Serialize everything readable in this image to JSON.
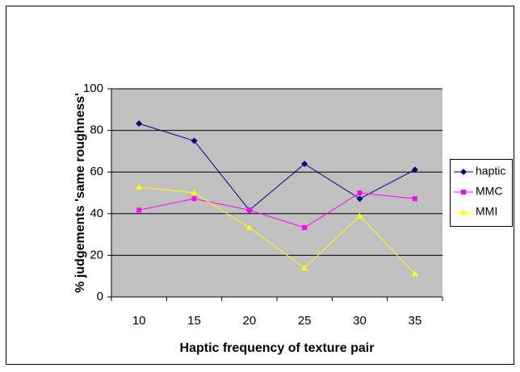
{
  "chart_data": {
    "type": "line",
    "xlabel": "Haptic frequency of texture pair",
    "ylabel": "% judgements 'same roughness'",
    "categories": [
      "10",
      "15",
      "20",
      "25",
      "30",
      "35"
    ],
    "series": [
      {
        "name": "haptic",
        "color": "#000080",
        "marker": "diamond",
        "values": [
          83.3,
          75,
          41.7,
          63.9,
          47.2,
          61.1
        ]
      },
      {
        "name": "MMC",
        "color": "#ff00ff",
        "marker": "square",
        "values": [
          41.7,
          47.2,
          41.7,
          33.3,
          50,
          47.2
        ]
      },
      {
        "name": "MMI",
        "color": "#ffff00",
        "marker": "triangle",
        "values": [
          52.8,
          50,
          33.3,
          13.9,
          38.9,
          11.1
        ]
      }
    ],
    "ylim": [
      0,
      100
    ],
    "yticks": [
      0,
      20,
      40,
      60,
      80,
      100
    ],
    "grid": true,
    "legend": "right"
  }
}
